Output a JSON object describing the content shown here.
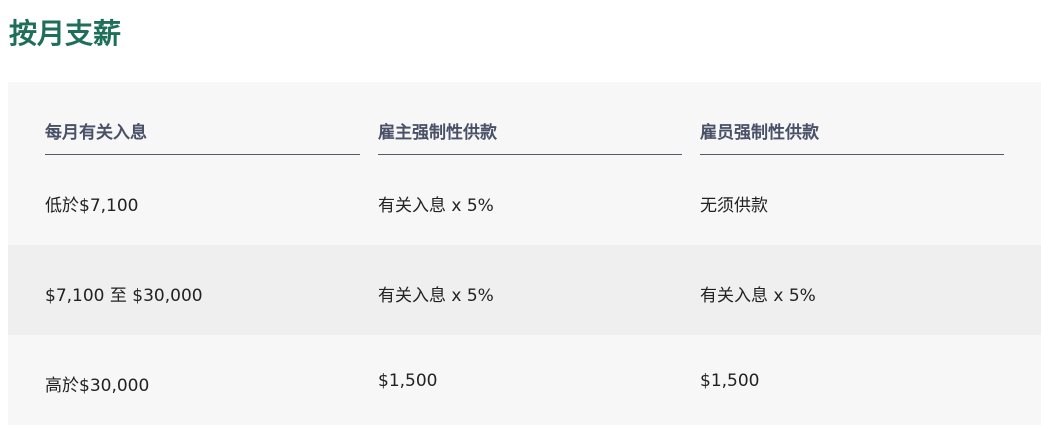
{
  "title": "按月支薪",
  "table": {
    "headers": [
      "每月有关入息",
      "雇主强制性供款",
      "雇员强制性供款"
    ],
    "rows": [
      [
        "低於$7,100",
        "有关入息 x 5%",
        "无须供款"
      ],
      [
        "$7,100 至 $30,000",
        "有关入息 x 5%",
        "有关入息 x 5%"
      ],
      [
        "高於$30,000",
        "$1,500",
        "$1,500"
      ]
    ]
  }
}
